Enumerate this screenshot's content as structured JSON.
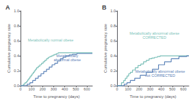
{
  "chart_data": [
    {
      "type": "step",
      "title": "A",
      "xlabel": "Time to pregnancy (days)",
      "ylabel": "Cumulative pregnancy rate",
      "xlim": [
        0,
        650
      ],
      "ylim": [
        0.0,
        1.0
      ],
      "xticks": [
        0,
        100,
        200,
        300,
        400,
        500,
        600
      ],
      "yticks": [
        {
          "value": 0.0,
          "label": "0.0"
        },
        0.2,
        0.4,
        0.6,
        0.8,
        {
          "value": 1.0,
          "label": "1.0"
        }
      ],
      "grid": false,
      "series": [
        {
          "name": "Metabolically normal obese",
          "color": "#7abfb8",
          "x": [
            0,
            25,
            40,
            55,
            65,
            75,
            85,
            95,
            105,
            115,
            125,
            135,
            145,
            160,
            175,
            190,
            205,
            220,
            235,
            250,
            265,
            280,
            295,
            310,
            325,
            340,
            355,
            370,
            390,
            420,
            460,
            500,
            560,
            620,
            650
          ],
          "values": [
            0.0,
            0.02,
            0.04,
            0.06,
            0.08,
            0.1,
            0.12,
            0.14,
            0.16,
            0.18,
            0.2,
            0.22,
            0.24,
            0.26,
            0.28,
            0.3,
            0.32,
            0.34,
            0.36,
            0.38,
            0.39,
            0.4,
            0.41,
            0.42,
            0.43,
            0.44,
            0.44,
            0.44,
            0.44,
            0.44,
            0.44,
            0.44,
            0.44,
            0.44,
            0.44
          ]
        },
        {
          "name": "Metabolically\nabnormal obese",
          "color": "#5b82b8",
          "x": [
            0,
            60,
            85,
            110,
            135,
            160,
            185,
            210,
            235,
            260,
            285,
            310,
            335,
            360,
            385,
            410,
            440,
            470,
            510,
            560,
            620,
            650
          ],
          "values": [
            0.0,
            0.02,
            0.04,
            0.07,
            0.1,
            0.13,
            0.16,
            0.19,
            0.22,
            0.25,
            0.28,
            0.3,
            0.33,
            0.36,
            0.38,
            0.4,
            0.41,
            0.42,
            0.43,
            0.43,
            0.43,
            0.43
          ]
        }
      ]
    },
    {
      "type": "step",
      "title": "B",
      "xlabel": "Time to pregnancy (days)",
      "ylabel": "Cumulative pregnancy rate",
      "xlim": [
        0,
        650
      ],
      "ylim": [
        0.0,
        1.0
      ],
      "xticks": [
        0,
        100,
        200,
        300,
        400,
        500,
        600
      ],
      "yticks": [
        {
          "value": 0.0,
          "label": "0.0"
        },
        0.2,
        0.4,
        0.6,
        0.8,
        {
          "value": 1.0,
          "label": "1.0"
        }
      ],
      "grid": false,
      "series": [
        {
          "name": "Metabolically abnormal obese\nCORRECTED",
          "color": "#7abfb8",
          "x": [
            0,
            40,
            60,
            75,
            90,
            105,
            120,
            140,
            165,
            190,
            215,
            240,
            265,
            290,
            315,
            340,
            365,
            390,
            420,
            460,
            510,
            570,
            630,
            650
          ],
          "values": [
            0.0,
            0.04,
            0.07,
            0.1,
            0.13,
            0.16,
            0.18,
            0.21,
            0.24,
            0.27,
            0.29,
            0.32,
            0.34,
            0.36,
            0.37,
            0.38,
            0.39,
            0.4,
            0.4,
            0.4,
            0.4,
            0.4,
            0.4,
            0.4
          ]
        },
        {
          "name": "Metabolically abnormal obese\nnot CORRECTED",
          "color": "#5b82b8",
          "x": [
            0,
            65,
            90,
            120,
            160,
            210,
            265,
            320,
            375,
            430,
            490,
            560,
            630,
            650
          ],
          "values": [
            0.0,
            0.02,
            0.04,
            0.07,
            0.1,
            0.14,
            0.18,
            0.22,
            0.28,
            0.32,
            0.36,
            0.39,
            0.4,
            0.4
          ]
        }
      ]
    }
  ]
}
